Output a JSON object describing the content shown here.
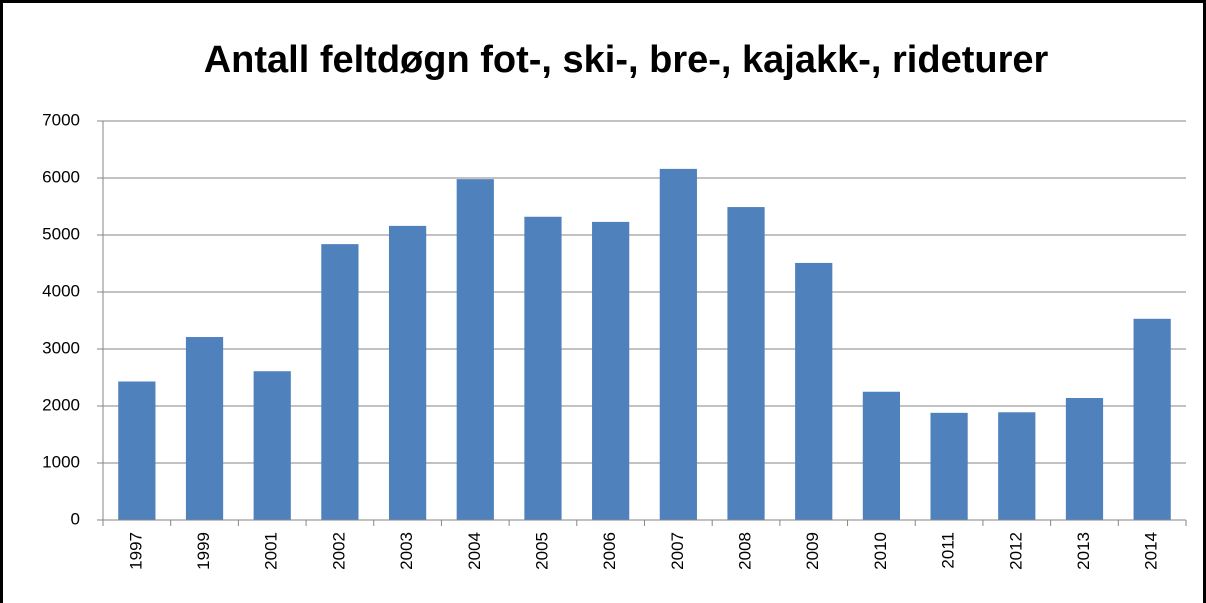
{
  "chart_data": {
    "type": "bar",
    "title": "Antall feltdøgn fot-, ski-, bre-, kajakk-, rideturer",
    "categories": [
      "1997",
      "1999",
      "2001",
      "2002",
      "2003",
      "2004",
      "2005",
      "2006",
      "2007",
      "2008",
      "2009",
      "2010",
      "2011",
      "2012",
      "2013",
      "2014"
    ],
    "values": [
      2430,
      3210,
      2610,
      4840,
      5160,
      5980,
      5320,
      5230,
      6160,
      5490,
      4510,
      2250,
      1880,
      1890,
      2140,
      3530
    ],
    "color": "#4f81bd",
    "ylim": [
      0,
      7000
    ],
    "yticks": [
      0,
      1000,
      2000,
      3000,
      4000,
      5000,
      6000,
      7000
    ],
    "grid": true
  }
}
